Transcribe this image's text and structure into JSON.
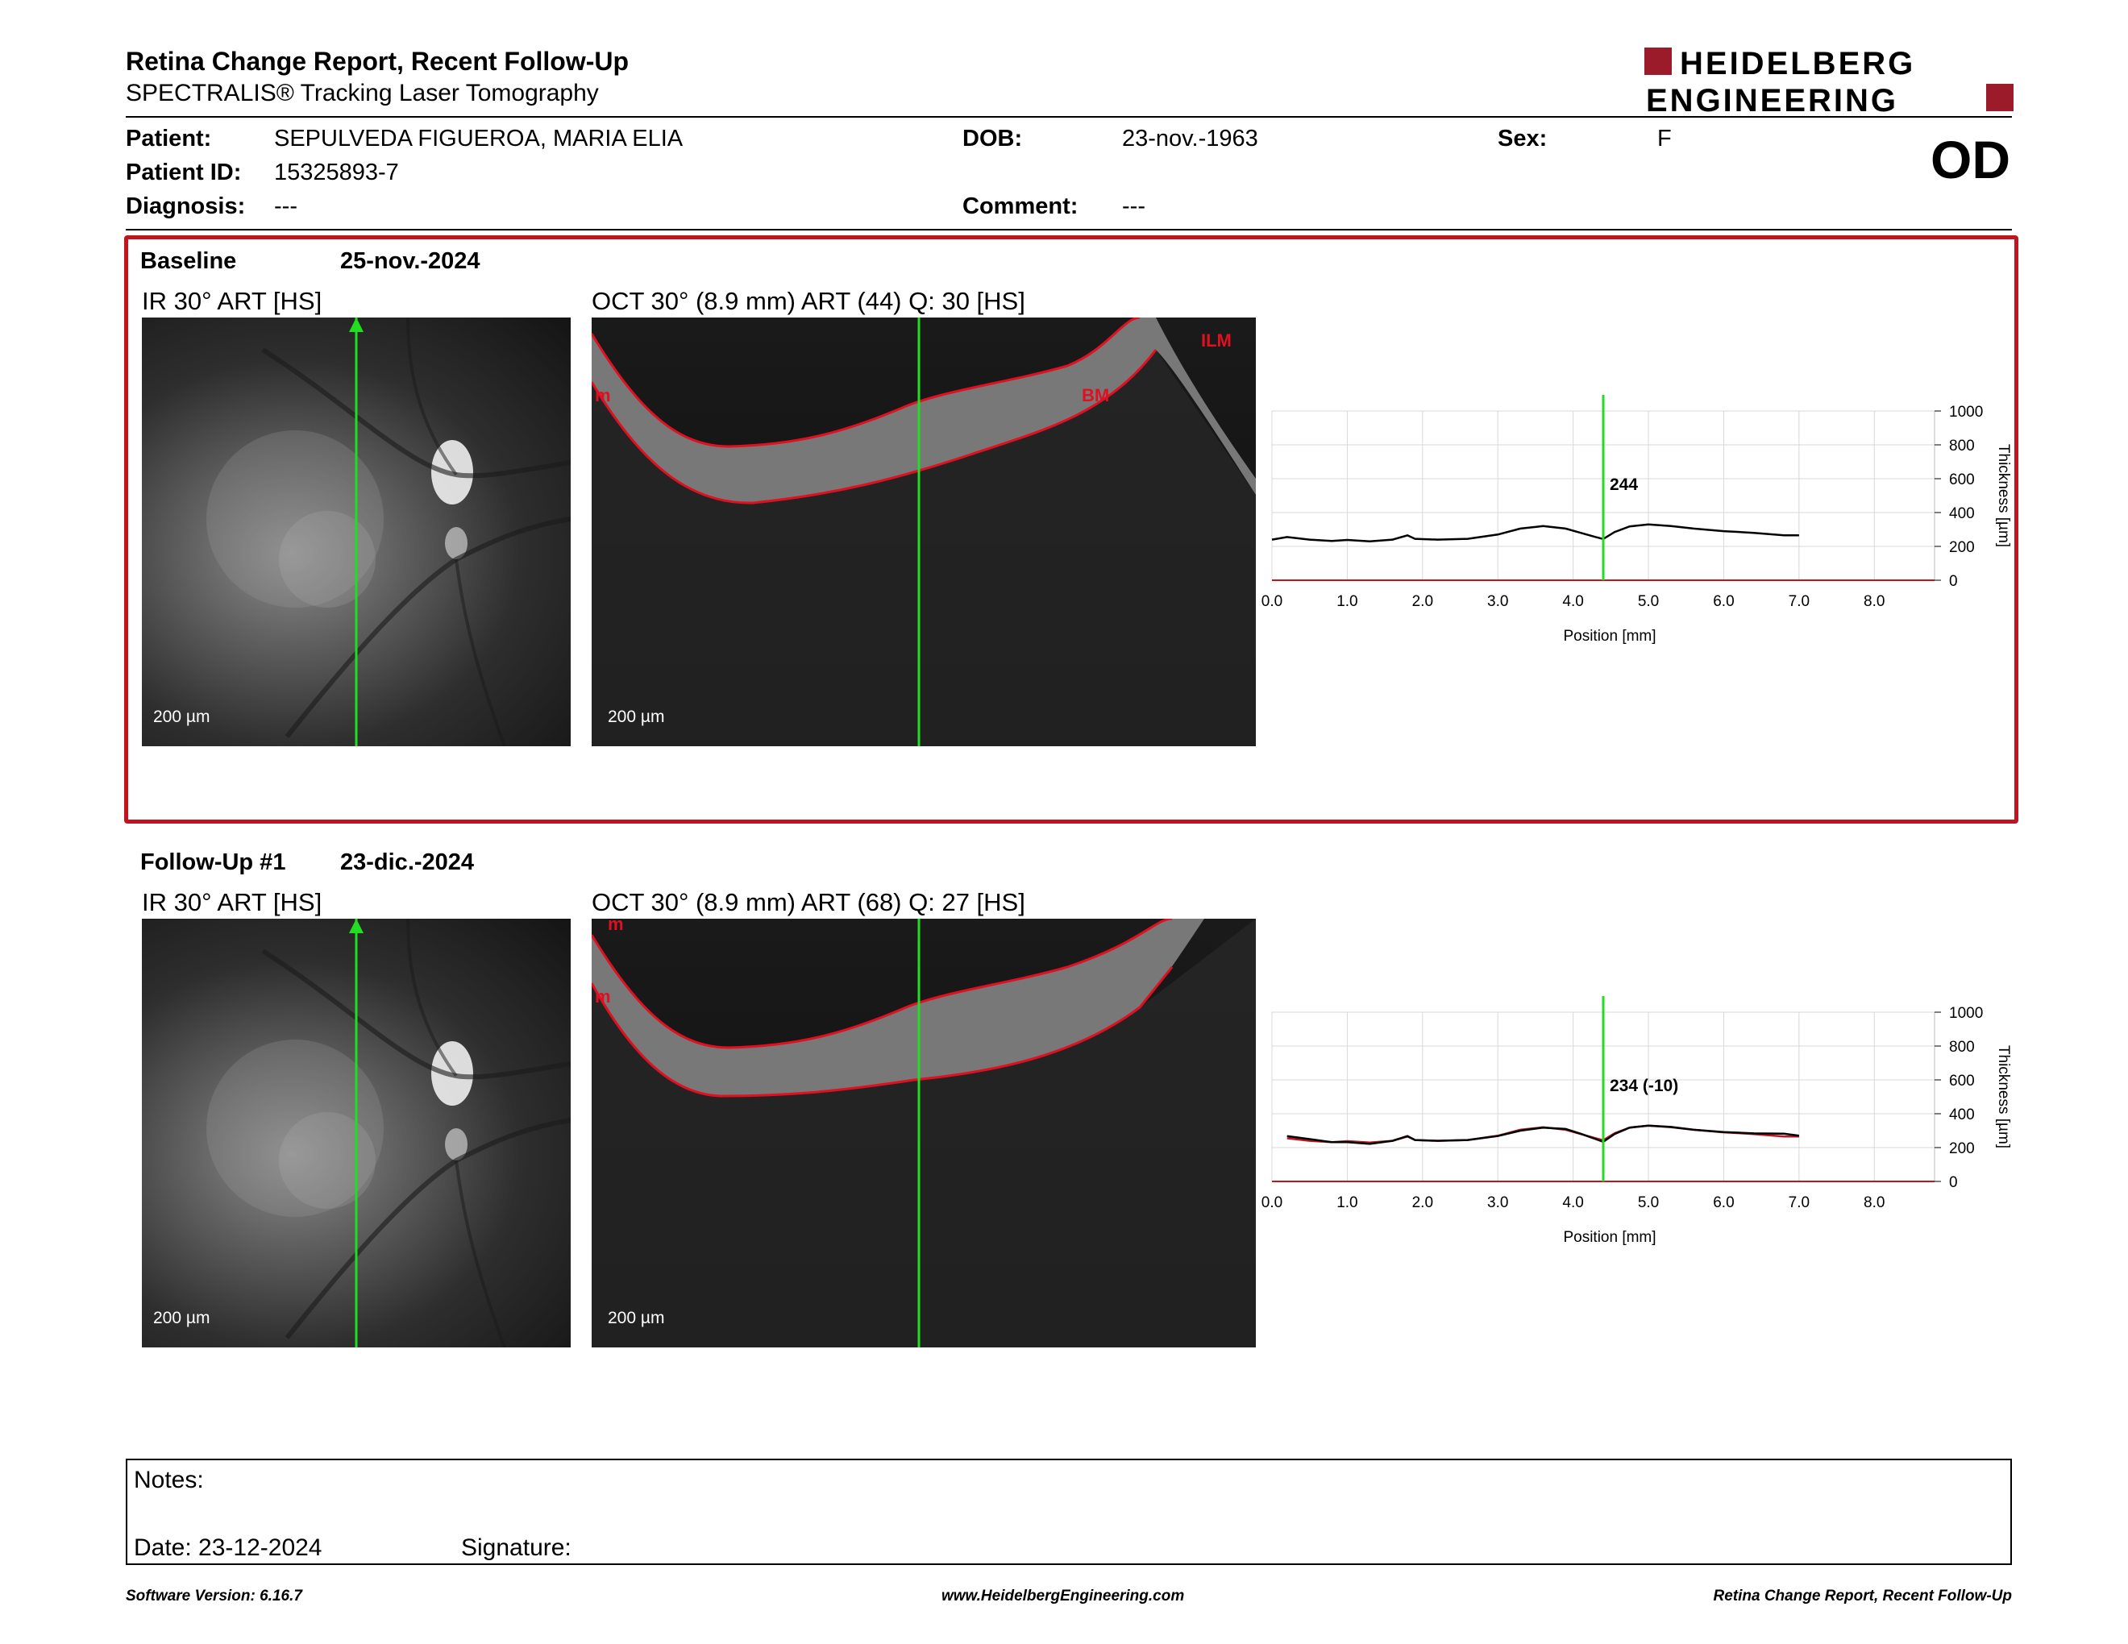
{
  "report": {
    "title": "Retina Change Report, Recent Follow-Up",
    "subtitle": "SPECTRALIS® Tracking Laser Tomography",
    "logo_line1": "HEIDELBERG",
    "logo_line2": "ENGINEERING",
    "brand_color": "#9b1b2a",
    "eye": "OD"
  },
  "patient": {
    "patient_label": "Patient:",
    "patient_value": "SEPULVEDA FIGUEROA, MARIA ELIA",
    "id_label": "Patient ID:",
    "id_value": "15325893-7",
    "diagnosis_label": "Diagnosis:",
    "diagnosis_value": "---",
    "dob_label": "DOB:",
    "dob_value": "23-nov.-1963",
    "comment_label": "Comment:",
    "comment_value": "---",
    "sex_label": "Sex:",
    "sex_value": "F"
  },
  "baseline": {
    "label": "Baseline",
    "date": "25-nov.-2024",
    "ir_caption": "IR 30° ART [HS]",
    "oct_caption": "OCT 30° (8.9 mm) ART (44) Q: 30 [HS]",
    "scale_ir": "200 µm",
    "scale_oct": "200 µm",
    "oct_labels": [
      "ILM",
      "BM",
      "m"
    ],
    "highlight_color": "#c0141f"
  },
  "followup": {
    "label": "Follow-Up #1",
    "date": "23-dic.-2024",
    "ir_caption": "IR 30° ART [HS]",
    "oct_caption": "OCT 30° (8.9 mm) ART (68) Q: 27 [HS]",
    "scale_ir": "200 µm",
    "scale_oct": "200 µm",
    "oct_labels": [
      "m",
      "m"
    ]
  },
  "chart_data": [
    {
      "type": "line",
      "title": "",
      "xlabel": "Position [mm]",
      "ylabel": "Thickness [µm]",
      "xlim": [
        0,
        8.8
      ],
      "ylim": [
        0,
        1000
      ],
      "x_ticks": [
        "0.0",
        "1.0",
        "2.0",
        "3.0",
        "4.0",
        "5.0",
        "6.0",
        "7.0",
        "8.0"
      ],
      "y_ticks": [
        "0",
        "200",
        "400",
        "600",
        "800",
        "1000"
      ],
      "grid": true,
      "cursor_x": 4.4,
      "cursor_label": "244",
      "series": [
        {
          "color": "#000000",
          "x": [
            0.0,
            0.2,
            0.5,
            0.8,
            1.0,
            1.3,
            1.6,
            1.8,
            1.9,
            2.2,
            2.6,
            3.0,
            3.3,
            3.6,
            3.9,
            4.1,
            4.3,
            4.4,
            4.55,
            4.75,
            5.0,
            5.3,
            5.6,
            6.0,
            6.4,
            6.8,
            7.0
          ],
          "values": [
            240,
            255,
            240,
            232,
            238,
            230,
            240,
            265,
            245,
            240,
            245,
            270,
            305,
            320,
            305,
            280,
            255,
            244,
            285,
            318,
            330,
            320,
            305,
            290,
            280,
            265,
            265
          ]
        }
      ]
    },
    {
      "type": "line",
      "title": "",
      "xlabel": "Position [mm]",
      "ylabel": "Thickness [µm]",
      "xlim": [
        0,
        8.8
      ],
      "ylim": [
        0,
        1000
      ],
      "x_ticks": [
        "0.0",
        "1.0",
        "2.0",
        "3.0",
        "4.0",
        "5.0",
        "6.0",
        "7.0",
        "8.0"
      ],
      "y_ticks": [
        "0",
        "200",
        "400",
        "600",
        "800",
        "1000"
      ],
      "grid": true,
      "cursor_x": 4.4,
      "cursor_label": "234 (-10)",
      "series": [
        {
          "color": "#c0141f",
          "x": [
            0.2,
            0.5,
            0.8,
            1.0,
            1.3,
            1.6,
            1.8,
            1.9,
            2.2,
            2.6,
            3.0,
            3.3,
            3.6,
            3.9,
            4.1,
            4.3,
            4.4,
            4.55,
            4.75,
            5.0,
            5.3,
            5.6,
            6.0,
            6.4,
            6.8,
            7.0
          ],
          "values": [
            255,
            240,
            232,
            238,
            230,
            240,
            265,
            245,
            240,
            245,
            270,
            305,
            320,
            305,
            280,
            255,
            244,
            285,
            318,
            330,
            320,
            305,
            290,
            280,
            265,
            265
          ]
        },
        {
          "color": "#000000",
          "x": [
            0.2,
            0.5,
            0.8,
            1.0,
            1.3,
            1.6,
            1.8,
            1.9,
            2.2,
            2.6,
            3.0,
            3.3,
            3.6,
            3.9,
            4.1,
            4.3,
            4.4,
            4.55,
            4.75,
            5.0,
            5.3,
            5.6,
            6.0,
            6.4,
            6.8,
            7.0
          ],
          "values": [
            268,
            250,
            232,
            232,
            222,
            240,
            268,
            245,
            240,
            245,
            268,
            300,
            318,
            310,
            282,
            250,
            234,
            280,
            318,
            330,
            322,
            305,
            292,
            284,
            282,
            270
          ]
        }
      ]
    }
  ],
  "notes": {
    "notes_label": "Notes:",
    "date_label": "Date: 23-12-2024",
    "signature_label": "Signature:"
  },
  "footer": {
    "left": "Software Version: 6.16.7",
    "center": "www.HeidelbergEngineering.com",
    "right": "Retina Change Report, Recent Follow-Up"
  }
}
